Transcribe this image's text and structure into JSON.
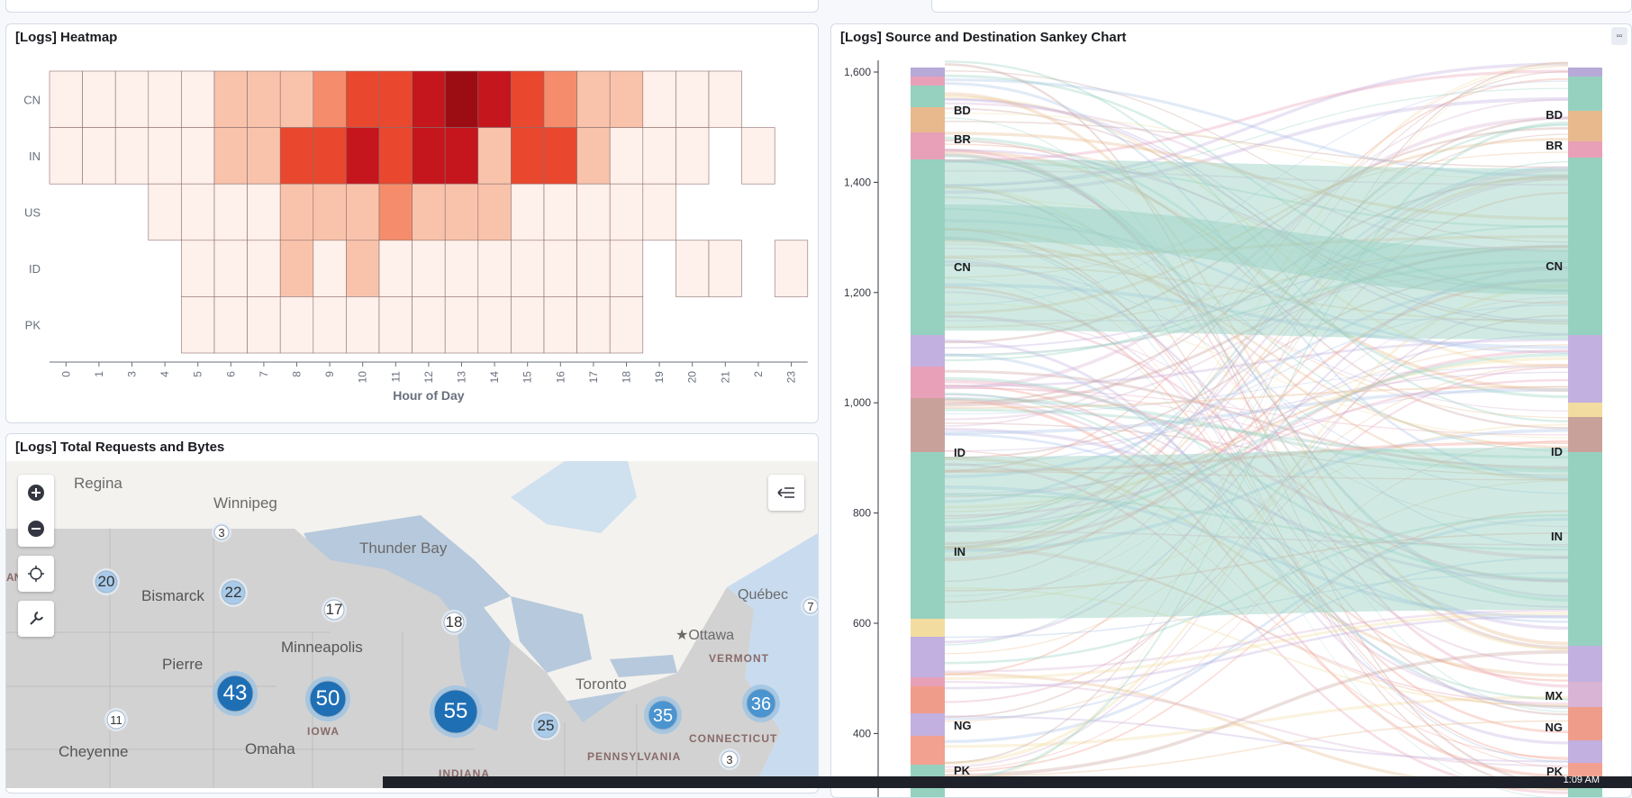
{
  "panels": {
    "heatmap": {
      "title": "[Logs] Heatmap"
    },
    "sankey": {
      "title": "[Logs] Source and Destination Sankey Chart"
    },
    "map": {
      "title": "[Logs] Total Requests and Bytes"
    }
  },
  "chart_data": [
    {
      "type": "heatmap",
      "title": "[Logs] Heatmap",
      "xlabel": "Hour of Day",
      "ylabel": "",
      "x_tick_labels": [
        "0",
        "1",
        "3",
        "4",
        "5",
        "6",
        "7",
        "8",
        "9",
        "10",
        "11",
        "12",
        "13",
        "14",
        "15",
        "16",
        "17",
        "18",
        "19",
        "20",
        "21",
        "2",
        "23"
      ],
      "rows": [
        "CN",
        "IN",
        "US",
        "ID",
        "PK"
      ],
      "values": [
        [
          1,
          1,
          2,
          2,
          1,
          3,
          4,
          4,
          5,
          6,
          7,
          9,
          10,
          8,
          6,
          5,
          3,
          3,
          1,
          1,
          1,
          null,
          null
        ],
        [
          1,
          1,
          1,
          1,
          1,
          3,
          4,
          6,
          7,
          9,
          7,
          8,
          8,
          4,
          6,
          6,
          3,
          1,
          1,
          1,
          null,
          1,
          null
        ],
        [
          null,
          null,
          null,
          1,
          1,
          1,
          2,
          3,
          3,
          4,
          5,
          3,
          3,
          3,
          2,
          2,
          1,
          1,
          1,
          null,
          null,
          null,
          null
        ],
        [
          null,
          null,
          null,
          null,
          1,
          1,
          1,
          3,
          2,
          3,
          2,
          2,
          2,
          1,
          1,
          1,
          1,
          1,
          null,
          1,
          1,
          null,
          1
        ],
        [
          null,
          null,
          null,
          null,
          1,
          1,
          1,
          1,
          2,
          1,
          2,
          2,
          1,
          1,
          2,
          1,
          1,
          1,
          null,
          null,
          null,
          null,
          null
        ]
      ],
      "colorscale": [
        "#fef0ea",
        "#f9c3ab",
        "#f58d6c",
        "#e9472e",
        "#c5161d",
        "#9b0d13"
      ]
    },
    {
      "type": "sankey",
      "title": "[Logs] Source and Destination Sankey Chart",
      "y_ticks": [
        1600,
        1400,
        1200,
        1000,
        800,
        600,
        400
      ],
      "y_tick_labels": [
        "1,600",
        "1,400",
        "1,200",
        "1,000",
        "800",
        "600",
        "400"
      ],
      "source_labels": [
        "BD",
        "BR",
        "CN",
        "ID",
        "IN",
        "NG",
        "PK"
      ],
      "destination_labels": [
        "BD",
        "BR",
        "CN",
        "ID",
        "IN",
        "MX",
        "NG",
        "PK"
      ],
      "node_colors": {
        "CN": "#96d1c0",
        "IN": "#96d1c0",
        "BR": "#e8b98d",
        "ID": "#c9a19b",
        "NG": "#f09c8a",
        "PK": "#f2a090",
        "BD": "#96d1c0",
        "MX": "#d9b4d4"
      }
    }
  ],
  "map": {
    "places": [
      "Regina",
      "Winnipeg",
      "Thunder Bay",
      "Bismarck",
      "Minneapolis",
      "Pierre",
      "Omaha",
      "Cheyenne",
      "Toronto",
      "Ottawa",
      "Québec",
      "VERMONT",
      "IOWA",
      "PENNSYLVANIA",
      "CONNECTICUT",
      "INDIANA"
    ],
    "clusters": [
      "3",
      "20",
      "22",
      "17",
      "18",
      "43",
      "50",
      "55",
      "25",
      "35",
      "36",
      "11",
      "3",
      "7"
    ],
    "edge_fragment": "AN"
  },
  "taskbar": {
    "clock": "1:09 AM"
  },
  "icons": {
    "zoom_in": "plus-icon",
    "zoom_out": "minus-icon",
    "locate": "crosshair-icon",
    "tools": "wrench-icon",
    "legend": "layers-collapse-icon"
  }
}
